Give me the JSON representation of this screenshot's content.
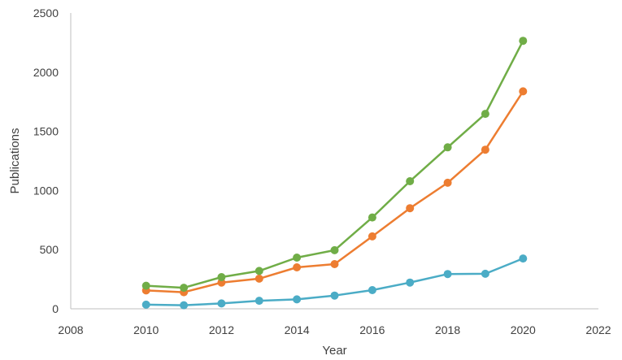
{
  "chart_data": {
    "type": "line",
    "title": "",
    "xlabel": "Year",
    "ylabel": "Publications",
    "xlim": [
      2008,
      2022
    ],
    "ylim": [
      0,
      2500
    ],
    "xticks": [
      "2008",
      "2010",
      "2012",
      "2014",
      "2016",
      "2018",
      "2020",
      "2022"
    ],
    "yticks": [
      "0",
      "500",
      "1000",
      "1500",
      "2000",
      "2500"
    ],
    "grid": false,
    "legend": "none",
    "x": [
      2010,
      2011,
      2012,
      2013,
      2014,
      2015,
      2016,
      2017,
      2018,
      2019,
      2020
    ],
    "series": [
      {
        "color": "#4BACC6",
        "values": [
          35,
          30,
          45,
          68,
          80,
          112,
          158,
          222,
          294,
          296,
          425
        ]
      },
      {
        "color": "#ED7D31",
        "values": [
          155,
          140,
          222,
          255,
          350,
          378,
          612,
          850,
          1065,
          1345,
          1838
        ]
      },
      {
        "color": "#70AD47",
        "values": [
          195,
          178,
          268,
          320,
          433,
          495,
          772,
          1078,
          1365,
          1648,
          2265
        ]
      }
    ]
  }
}
